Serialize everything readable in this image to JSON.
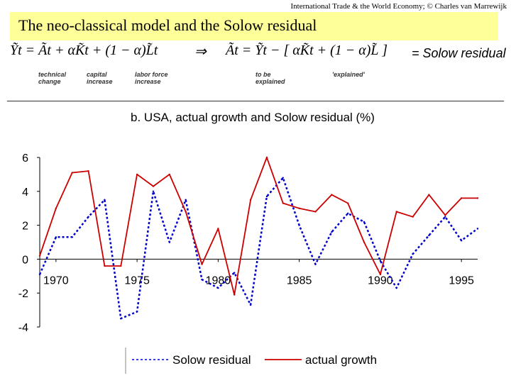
{
  "header": {
    "note": "International Trade & the World Economy;  © Charles van Marrewijk"
  },
  "slide": {
    "title": "The neo-classical model and the Solow residual"
  },
  "formula": {
    "lhs": "Ỹt =  Ãt  + αK̃t  + (1 − α)L̃t",
    "implies": "⇒",
    "rhs": "Ãt  =  Ỹt  − [ αK̃t  + (1 − α)L̃ ]",
    "eq_solow": "= Solow residual",
    "sub_technical": "technical change",
    "sub_capital": "capital increase",
    "sub_labor": "labor  force increase",
    "sub_explained_target": "to be explained",
    "sub_explained": "'explained'"
  },
  "chart_data": {
    "type": "line",
    "title": "b. USA, actual growth and Solow residual (%)",
    "xlabel": "",
    "ylabel": "",
    "x": [
      1969,
      1970,
      1971,
      1972,
      1973,
      1974,
      1975,
      1976,
      1977,
      1978,
      1979,
      1980,
      1981,
      1982,
      1983,
      1984,
      1985,
      1986,
      1987,
      1988,
      1989,
      1990,
      1991,
      1992,
      1993,
      1994,
      1995,
      1996
    ],
    "x_ticks": [
      1970,
      1975,
      1980,
      1985,
      1990,
      1995
    ],
    "ylim": [
      -4,
      6
    ],
    "y_ticks": [
      -4,
      -2,
      0,
      2,
      4,
      6
    ],
    "grid": false,
    "legend": "bottom",
    "series": [
      {
        "name": "Solow residual",
        "style": "dotted",
        "color": "#0000cc",
        "values": [
          -0.9,
          1.3,
          1.3,
          2.5,
          3.5,
          -3.5,
          -3.1,
          4.0,
          1.0,
          3.5,
          -1.2,
          -1.7,
          -0.8,
          -2.7,
          3.7,
          4.8,
          2.0,
          -0.3,
          1.6,
          2.7,
          2.2,
          -0.1,
          -1.7,
          0.3,
          1.4,
          2.5,
          1.1,
          1.8
        ]
      },
      {
        "name": "actual growth",
        "style": "solid",
        "color": "#cc0000",
        "values": [
          0.2,
          3.0,
          5.1,
          5.2,
          -0.4,
          -0.4,
          5.0,
          4.3,
          5.0,
          2.8,
          -0.3,
          1.8,
          -2.1,
          3.5,
          6.0,
          3.3,
          3.0,
          2.8,
          3.8,
          3.3,
          1.0,
          -0.9,
          2.8,
          2.5,
          3.8,
          2.6,
          3.6,
          3.6
        ]
      }
    ]
  }
}
